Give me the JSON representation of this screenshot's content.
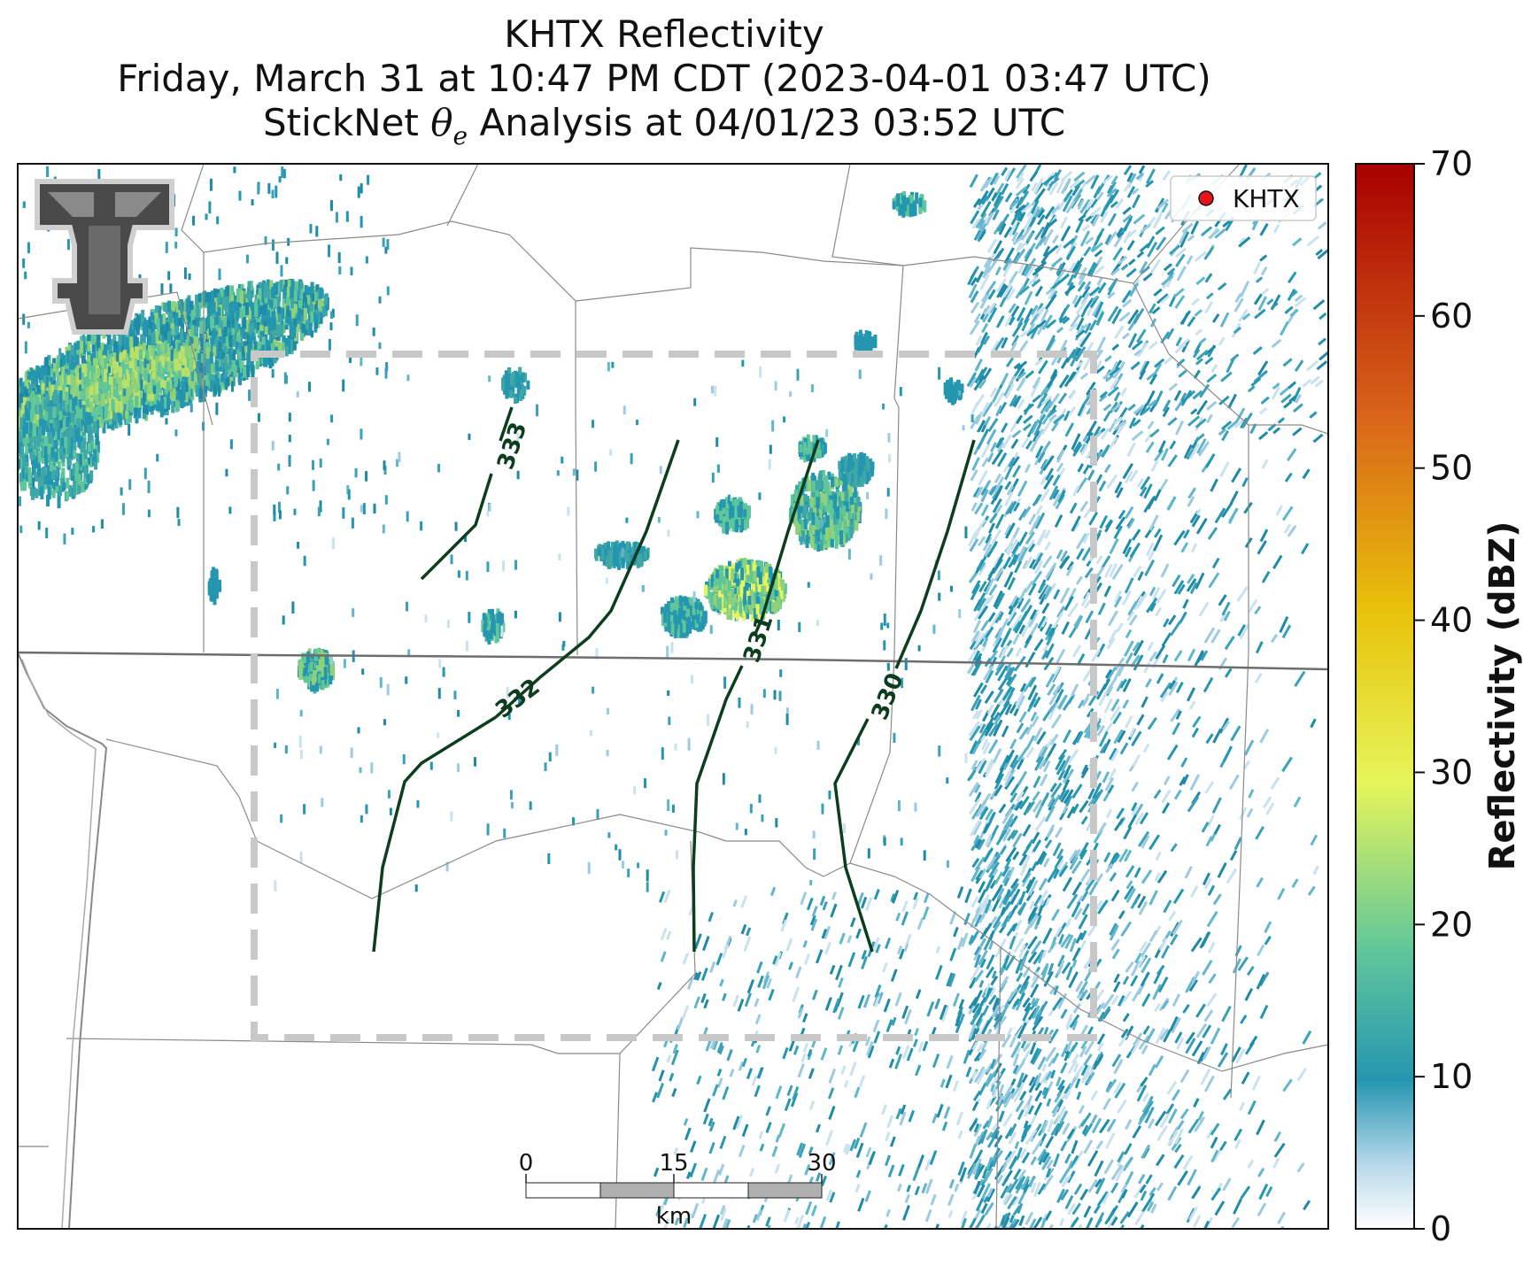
{
  "title": {
    "line1": "KHTX Reflectivity",
    "line2": "Friday, March 31 at 10:47 PM CDT (2023-04-01 03:47 UTC)",
    "line3_pre": "StickNet ",
    "line3_symbol": "θ",
    "line3_sub": "e",
    "line3_post": " Analysis at 04/01/23 03:52 UTC"
  },
  "legend": {
    "label": "KHTX",
    "marker_color": "#e8141b"
  },
  "colorbar": {
    "title": "Reflectivity (dBZ)",
    "ticks": [
      "0",
      "10",
      "20",
      "30",
      "40",
      "50",
      "60",
      "70"
    ],
    "min": 0,
    "max": 70,
    "colors": [
      "#ffffff",
      "#b8d8ea",
      "#2596b0",
      "#5fc69a",
      "#e6f55a",
      "#e8c20a",
      "#d9661a",
      "#a80000"
    ]
  },
  "contours": [
    {
      "label": "333"
    },
    {
      "label": "332"
    },
    {
      "label": "331"
    },
    {
      "label": "330"
    }
  ],
  "scalebar": {
    "ticks": [
      "0",
      "15",
      "30"
    ],
    "unit": "km"
  },
  "logo": {
    "text": "TT",
    "name": "Texas Tech logo"
  }
}
